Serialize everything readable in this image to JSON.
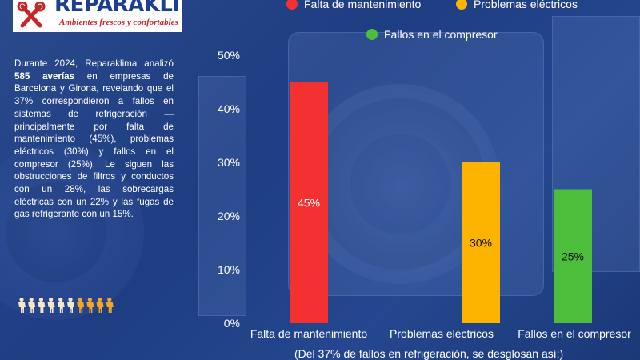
{
  "brand": {
    "name": "REPARAKLIMA",
    "tagline": "Ambientes frescos y confortables",
    "colors": {
      "navy": "#1e3f8f",
      "red": "#c62828",
      "overlay": "#1d3a7a"
    }
  },
  "description": {
    "p1": "Durante 2024, Reparaklima analizó ",
    "count": "585 averías",
    "p2": " en empresas de Barcelona y Girona, revelando que el 37% correspondieron a fallos en sistemas de refrigeración — principalmente por falta de mantenimiento (45%), problemas eléctricos (30%) y fallos en el compresor (25%). Le siguen las obstrucciones de filtros y conductos con un 28%, las sobrecargas eléctricas con un 22% y las fugas de gas refrigerante con un 15%."
  },
  "people_icons": {
    "icon": "person-icon",
    "total": 10,
    "highlighted": 4,
    "colors": [
      "#f5e6c8",
      "#f5a623"
    ]
  },
  "chart_data": {
    "type": "bar",
    "categories": [
      "Falta de mantenimiento",
      "Problemas eléctricos",
      "Fallos en el compresor"
    ],
    "values": [
      45,
      30,
      25
    ],
    "value_labels": [
      "45%",
      "30%",
      "25%"
    ],
    "colors": [
      "#f43131",
      "#fdb400",
      "#4dbe3b"
    ],
    "legend": [
      "Falta de mantenimiento",
      "Problemas eléctricos",
      "Fallos en el compresor"
    ],
    "legend_position": "top",
    "ylim": [
      0,
      50
    ],
    "yticks": [
      "0%",
      "10%",
      "20%",
      "30%",
      "40%",
      "50%"
    ],
    "xlabel": "(Del 37% de fallos en refrigeración, se desglosan así:)",
    "ylabel": "",
    "grid": false
  }
}
